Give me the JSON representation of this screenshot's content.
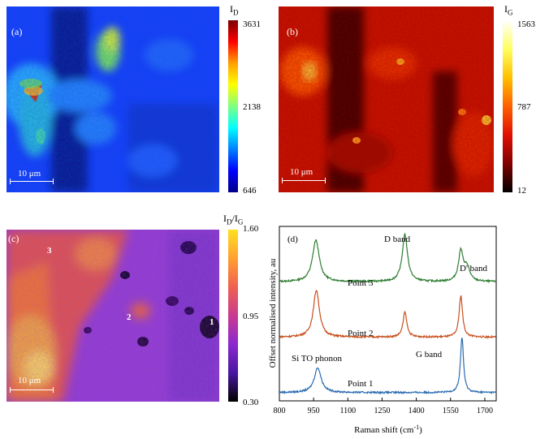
{
  "panel_a": {
    "label": "(a)",
    "scale": "10 μm",
    "colorbar": {
      "title_main": "I",
      "title_sub": "D",
      "max": "3631",
      "mid": "2138",
      "min": "646"
    }
  },
  "panel_b": {
    "label": "(b)",
    "scale": "10 μm",
    "colorbar": {
      "title_main": "I",
      "title_sub": "G",
      "max": "1563",
      "mid": "787",
      "min": "12"
    }
  },
  "panel_c": {
    "label": "(c)",
    "scale": "10 μm",
    "colorbar": {
      "title_main": "I",
      "title_sub_1": "D",
      "title_slash": "/I",
      "title_sub_2": "G",
      "max": "1.60",
      "mid": "0.95",
      "min": "0.30"
    },
    "points": [
      "3",
      "2",
      "1"
    ]
  },
  "panel_d": {
    "label": "(d)"
  },
  "chart_data": {
    "type": "line",
    "xlabel": "Raman shift (cm",
    "xlabel_sup": "-1",
    "xlabel_end": ")",
    "ylabel": "Offset normalised intensity, au",
    "xlim": [
      800,
      1750
    ],
    "xticks": [
      "800",
      "950",
      "1100",
      "1250",
      "1400",
      "1550",
      "1700"
    ],
    "x_values": [
      800,
      950,
      1100,
      1250,
      1400,
      1550,
      1700
    ],
    "annotations": [
      "D band",
      "D' band",
      "G band",
      "Si TO phonon"
    ],
    "series": [
      {
        "name": "Point 3",
        "color": "#2e7d32",
        "offset": 2.0,
        "peaks": [
          {
            "x": 960,
            "h": 0.75,
            "w": 18
          },
          {
            "x": 1350,
            "h": 0.85,
            "w": 14
          },
          {
            "x": 1595,
            "h": 0.55,
            "w": 12
          },
          {
            "x": 1622,
            "h": 0.25,
            "w": 14
          }
        ]
      },
      {
        "name": "Point 2",
        "color": "#c8501e",
        "offset": 1.0,
        "peaks": [
          {
            "x": 962,
            "h": 0.85,
            "w": 16
          },
          {
            "x": 1350,
            "h": 0.45,
            "w": 10
          },
          {
            "x": 1595,
            "h": 0.75,
            "w": 9
          }
        ]
      },
      {
        "name": "Point 1",
        "color": "#2b6cb0",
        "offset": 0.0,
        "peaks": [
          {
            "x": 968,
            "h": 0.45,
            "w": 18
          },
          {
            "x": 1600,
            "h": 1.0,
            "w": 8
          }
        ]
      }
    ]
  }
}
